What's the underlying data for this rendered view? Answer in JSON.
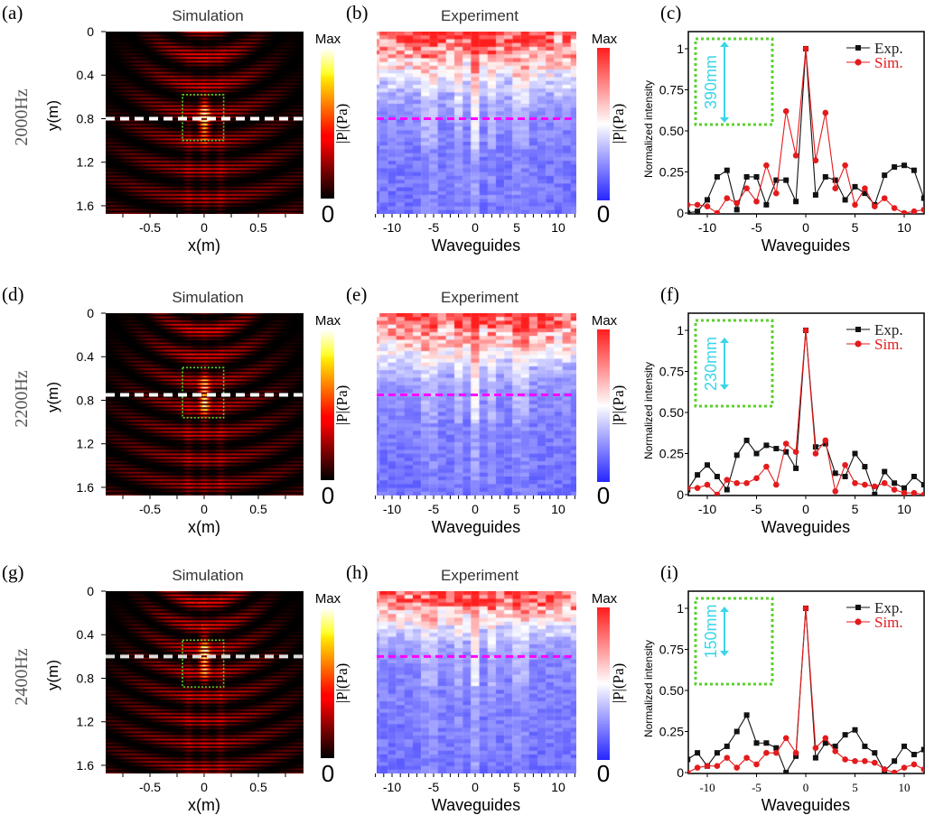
{
  "common": {
    "sim_title": "Simulation",
    "exp_title": "Experiment",
    "sim_xlabel": "x(m)",
    "sim_ylabel": "y(m)",
    "exp_xlabel": "Waveguides",
    "profile_xlabel": "Waveguides",
    "profile_ylabel": "Normalized intensity",
    "colorbar_max": "Max",
    "colorbar_min": "0",
    "colorbar_label": "|P|(Pa)",
    "sim_yticks": [
      "0",
      "0.4",
      "0.8",
      "1.2",
      "1.6"
    ],
    "sim_xticks": [
      "-0.5",
      "0",
      "0.5"
    ],
    "exp_xticks": [
      "-10",
      "-5",
      "0",
      "5",
      "10"
    ],
    "profile_xticks": [
      "-10",
      "-5",
      "0",
      "5",
      "10"
    ],
    "profile_yticks": [
      "0",
      "0.25",
      "0.50",
      "0.75",
      "1"
    ],
    "legend_exp": "Exp.",
    "legend_sim": "Sim.",
    "colors": {
      "exp": "#111111",
      "sim": "#e41a1c",
      "sim_cut": "#ffffff",
      "exp_cut": "#ff00ff",
      "focus_box": "#5bd12e",
      "inset_arrow": "#3ad6e8"
    }
  },
  "rows": [
    {
      "freq": "2000Hz",
      "sim_label": "(a)",
      "exp_label": "(b)",
      "profile_label": "(c)",
      "cut_y_m": 0.8,
      "focus_box_m": {
        "x": [
          -0.2,
          0.18
        ],
        "y": [
          0.58,
          1.0
        ]
      },
      "inset_text": "390mm"
    },
    {
      "freq": "2200Hz",
      "sim_label": "(d)",
      "exp_label": "(e)",
      "profile_label": "(f)",
      "cut_y_m": 0.75,
      "focus_box_m": {
        "x": [
          -0.2,
          0.18
        ]
      },
      "inset_text": "230mm"
    },
    {
      "freq": "2400Hz",
      "sim_label": "(g)",
      "exp_label": "(h)",
      "profile_label": "(i)",
      "cut_y_m": 0.6,
      "focus_box_m": {
        "x": [
          -0.2,
          0.18
        ]
      },
      "inset_text": "150mm"
    }
  ],
  "chart_data": [
    {
      "type": "line",
      "panel": "(c)",
      "xlabel": "Waveguides",
      "ylabel": "Normalized intensity",
      "xlim": [
        -12,
        12
      ],
      "ylim": [
        0,
        1.1
      ],
      "legend": "top-right",
      "x": [
        -12,
        -11,
        -10,
        -9,
        -8,
        -7,
        -6,
        -5,
        -4,
        -3,
        -2,
        -1,
        0,
        1,
        2,
        3,
        4,
        5,
        6,
        7,
        8,
        9,
        10,
        11,
        12
      ],
      "series": [
        {
          "name": "Exp.",
          "values": [
            0.0,
            0.01,
            0.08,
            0.22,
            0.26,
            0.02,
            0.22,
            0.22,
            0.05,
            0.2,
            0.2,
            0.07,
            1.0,
            0.11,
            0.22,
            0.2,
            0.08,
            0.16,
            0.12,
            0.05,
            0.23,
            0.28,
            0.29,
            0.26,
            0.09
          ]
        },
        {
          "name": "Sim.",
          "values": [
            0.05,
            0.05,
            0.04,
            0.0,
            0.09,
            0.06,
            0.15,
            0.07,
            0.29,
            0.12,
            0.62,
            0.35,
            1.0,
            0.32,
            0.61,
            0.15,
            0.29,
            0.05,
            0.15,
            0.04,
            0.09,
            0.03,
            0.0,
            0.01,
            0.02
          ]
        }
      ]
    },
    {
      "type": "line",
      "panel": "(f)",
      "xlabel": "Waveguides",
      "ylabel": "Normalized intensity",
      "xlim": [
        -12,
        12
      ],
      "ylim": [
        0,
        1.1
      ],
      "legend": "top-right",
      "x": [
        -12,
        -11,
        -10,
        -9,
        -8,
        -7,
        -6,
        -5,
        -4,
        -3,
        -2,
        -1,
        0,
        1,
        2,
        3,
        4,
        5,
        6,
        7,
        8,
        9,
        10,
        11,
        12
      ],
      "series": [
        {
          "name": "Exp.",
          "values": [
            0.03,
            0.12,
            0.18,
            0.11,
            0.03,
            0.24,
            0.33,
            0.25,
            0.3,
            0.28,
            0.26,
            0.16,
            1.0,
            0.29,
            0.31,
            0.13,
            0.11,
            0.25,
            0.17,
            0.0,
            0.14,
            0.07,
            0.04,
            0.11,
            0.06
          ]
        },
        {
          "name": "Sim.",
          "values": [
            0.04,
            0.04,
            0.06,
            0.0,
            0.09,
            0.07,
            0.07,
            0.1,
            0.17,
            0.06,
            0.31,
            0.26,
            1.0,
            0.25,
            0.33,
            0.02,
            0.18,
            0.07,
            0.06,
            0.05,
            0.07,
            0.03,
            0.01,
            0.01,
            0.0
          ]
        }
      ]
    },
    {
      "type": "line",
      "panel": "(i)",
      "xlabel": "Waveguides",
      "ylabel": "Normalized intensity",
      "xlim": [
        -12,
        12
      ],
      "ylim": [
        0,
        1.1
      ],
      "legend": "top-right",
      "x": [
        -12,
        -11,
        -10,
        -9,
        -8,
        -7,
        -6,
        -5,
        -4,
        -3,
        -2,
        -1,
        0,
        1,
        2,
        3,
        4,
        5,
        6,
        7,
        8,
        9,
        10,
        11,
        12
      ],
      "series": [
        {
          "name": "Exp.",
          "values": [
            0.08,
            0.12,
            0.04,
            0.12,
            0.16,
            0.25,
            0.35,
            0.18,
            0.18,
            0.15,
            0.0,
            0.1,
            1.0,
            0.09,
            0.18,
            0.16,
            0.23,
            0.26,
            0.16,
            0.12,
            0.01,
            0.07,
            0.16,
            0.11,
            0.14
          ]
        },
        {
          "name": "Sim.",
          "values": [
            0.0,
            0.03,
            0.04,
            0.04,
            0.09,
            0.03,
            0.09,
            0.05,
            0.12,
            0.12,
            0.21,
            0.12,
            1.0,
            0.15,
            0.21,
            0.13,
            0.08,
            0.07,
            0.07,
            0.06,
            0.02,
            0.0,
            0.03,
            0.05,
            0.02
          ]
        }
      ]
    }
  ]
}
